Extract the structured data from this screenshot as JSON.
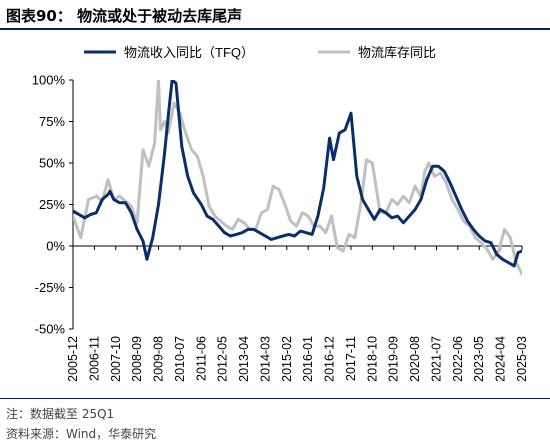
{
  "header": {
    "title": "图表90：  物流或处于被动去库尾声"
  },
  "footer": {
    "note": "注：数据截至 25Q1",
    "source": "资料来源：Wind，华泰研究"
  },
  "colors": {
    "series1": "#0b2e6b",
    "series2": "#c0c0c0",
    "title_rule": "#002060"
  },
  "chart_data": {
    "type": "line",
    "ylim": [
      -50,
      100
    ],
    "yticks": [
      -50,
      -25,
      0,
      25,
      50,
      75,
      100
    ],
    "ytick_labels": [
      "-50%",
      "-25%",
      "0%",
      "25%",
      "50%",
      "75%",
      "100%"
    ],
    "y_unit": "%",
    "xlim": [
      "2005-12",
      "2025-03"
    ],
    "xtick_labels": [
      "2005-12",
      "2006-11",
      "2007-10",
      "2008-09",
      "2009-08",
      "2010-07",
      "2011-06",
      "2012-05",
      "2013-04",
      "2014-03",
      "2015-02",
      "2016-01",
      "2016-12",
      "2017-11",
      "2018-10",
      "2019-09",
      "2020-08",
      "2021-07",
      "2022-06",
      "2023-05",
      "2024-04",
      "2025-03"
    ],
    "legend_position": "top",
    "series": [
      {
        "name": "物流收入同比（TFQ）",
        "color": "#0b2e6b",
        "points": [
          [
            "2005-12",
            21
          ],
          [
            "2006-06",
            17
          ],
          [
            "2006-09",
            19
          ],
          [
            "2006-12",
            20
          ],
          [
            "2007-03",
            28
          ],
          [
            "2007-06",
            31
          ],
          [
            "2007-07",
            33
          ],
          [
            "2007-09",
            28
          ],
          [
            "2007-12",
            26
          ],
          [
            "2008-03",
            26
          ],
          [
            "2008-06",
            20
          ],
          [
            "2008-09",
            10
          ],
          [
            "2008-12",
            3
          ],
          [
            "2009-02",
            -8
          ],
          [
            "2009-05",
            5
          ],
          [
            "2009-08",
            25
          ],
          [
            "2009-11",
            55
          ],
          [
            "2010-01",
            78
          ],
          [
            "2010-03",
            100
          ],
          [
            "2010-05",
            98
          ],
          [
            "2010-08",
            60
          ],
          [
            "2010-11",
            42
          ],
          [
            "2011-02",
            32
          ],
          [
            "2011-06",
            25
          ],
          [
            "2011-09",
            18
          ],
          [
            "2011-12",
            16
          ],
          [
            "2012-03",
            12
          ],
          [
            "2012-06",
            8
          ],
          [
            "2012-09",
            6
          ],
          [
            "2012-12",
            7
          ],
          [
            "2013-03",
            8
          ],
          [
            "2013-06",
            10
          ],
          [
            "2013-09",
            10
          ],
          [
            "2013-12",
            8
          ],
          [
            "2014-03",
            6
          ],
          [
            "2014-06",
            4
          ],
          [
            "2014-09",
            5
          ],
          [
            "2014-12",
            6
          ],
          [
            "2015-03",
            7
          ],
          [
            "2015-06",
            6
          ],
          [
            "2015-09",
            9
          ],
          [
            "2015-12",
            8
          ],
          [
            "2016-03",
            7
          ],
          [
            "2016-06",
            18
          ],
          [
            "2016-09",
            35
          ],
          [
            "2016-12",
            65
          ],
          [
            "2017-02",
            52
          ],
          [
            "2017-05",
            68
          ],
          [
            "2017-08",
            70
          ],
          [
            "2017-11",
            80
          ],
          [
            "2018-02",
            42
          ],
          [
            "2018-05",
            28
          ],
          [
            "2018-08",
            22
          ],
          [
            "2018-11",
            16
          ],
          [
            "2019-02",
            22
          ],
          [
            "2019-05",
            20
          ],
          [
            "2019-08",
            17
          ],
          [
            "2019-11",
            18
          ],
          [
            "2020-02",
            14
          ],
          [
            "2020-05",
            18
          ],
          [
            "2020-08",
            22
          ],
          [
            "2020-11",
            28
          ],
          [
            "2021-02",
            40
          ],
          [
            "2021-05",
            48
          ],
          [
            "2021-08",
            48
          ],
          [
            "2021-11",
            45
          ],
          [
            "2022-02",
            38
          ],
          [
            "2022-05",
            30
          ],
          [
            "2022-08",
            22
          ],
          [
            "2022-11",
            15
          ],
          [
            "2023-02",
            10
          ],
          [
            "2023-05",
            6
          ],
          [
            "2023-08",
            3
          ],
          [
            "2023-11",
            2
          ],
          [
            "2024-02",
            -5
          ],
          [
            "2024-05",
            -8
          ],
          [
            "2024-08",
            -10
          ],
          [
            "2024-11",
            -12
          ],
          [
            "2025-01",
            -4
          ],
          [
            "2025-03",
            -3
          ]
        ]
      },
      {
        "name": "物流库存同比",
        "color": "#c0c0c0",
        "points": [
          [
            "2005-12",
            18
          ],
          [
            "2006-04",
            5
          ],
          [
            "2006-08",
            28
          ],
          [
            "2006-12",
            30
          ],
          [
            "2007-03",
            27
          ],
          [
            "2007-06",
            40
          ],
          [
            "2007-09",
            28
          ],
          [
            "2007-12",
            30
          ],
          [
            "2008-03",
            27
          ],
          [
            "2008-06",
            24
          ],
          [
            "2008-09",
            14
          ],
          [
            "2008-12",
            58
          ],
          [
            "2009-03",
            48
          ],
          [
            "2009-06",
            62
          ],
          [
            "2009-08",
            100
          ],
          [
            "2009-09",
            70
          ],
          [
            "2009-11",
            75
          ],
          [
            "2010-01",
            68
          ],
          [
            "2010-04",
            86
          ],
          [
            "2010-07",
            80
          ],
          [
            "2010-10",
            68
          ],
          [
            "2011-01",
            58
          ],
          [
            "2011-04",
            54
          ],
          [
            "2011-07",
            42
          ],
          [
            "2011-10",
            24
          ],
          [
            "2012-01",
            18
          ],
          [
            "2012-04",
            15
          ],
          [
            "2012-07",
            12
          ],
          [
            "2012-10",
            10
          ],
          [
            "2013-01",
            16
          ],
          [
            "2013-04",
            14
          ],
          [
            "2013-07",
            10
          ],
          [
            "2013-10",
            10
          ],
          [
            "2014-01",
            20
          ],
          [
            "2014-04",
            22
          ],
          [
            "2014-07",
            36
          ],
          [
            "2014-10",
            34
          ],
          [
            "2015-01",
            25
          ],
          [
            "2015-04",
            15
          ],
          [
            "2015-07",
            12
          ],
          [
            "2015-10",
            20
          ],
          [
            "2016-01",
            18
          ],
          [
            "2016-04",
            12
          ],
          [
            "2016-07",
            12
          ],
          [
            "2016-10",
            8
          ],
          [
            "2017-01",
            18
          ],
          [
            "2017-04",
            -1
          ],
          [
            "2017-07",
            -3
          ],
          [
            "2017-10",
            7
          ],
          [
            "2018-01",
            5
          ],
          [
            "2018-04",
            25
          ],
          [
            "2018-07",
            52
          ],
          [
            "2018-10",
            50
          ],
          [
            "2018-12",
            35
          ],
          [
            "2019-02",
            20
          ],
          [
            "2019-05",
            20
          ],
          [
            "2019-08",
            28
          ],
          [
            "2019-11",
            25
          ],
          [
            "2020-02",
            30
          ],
          [
            "2020-05",
            26
          ],
          [
            "2020-08",
            36
          ],
          [
            "2020-11",
            30
          ],
          [
            "2021-01",
            45
          ],
          [
            "2021-03",
            50
          ],
          [
            "2021-06",
            42
          ],
          [
            "2021-09",
            44
          ],
          [
            "2021-12",
            38
          ],
          [
            "2022-03",
            28
          ],
          [
            "2022-06",
            22
          ],
          [
            "2022-09",
            15
          ],
          [
            "2022-12",
            12
          ],
          [
            "2023-03",
            5
          ],
          [
            "2023-06",
            2
          ],
          [
            "2023-09",
            -2
          ],
          [
            "2023-12",
            -8
          ],
          [
            "2024-03",
            -3
          ],
          [
            "2024-06",
            10
          ],
          [
            "2024-09",
            5
          ],
          [
            "2024-12",
            -10
          ],
          [
            "2025-03",
            -17
          ]
        ]
      }
    ]
  }
}
